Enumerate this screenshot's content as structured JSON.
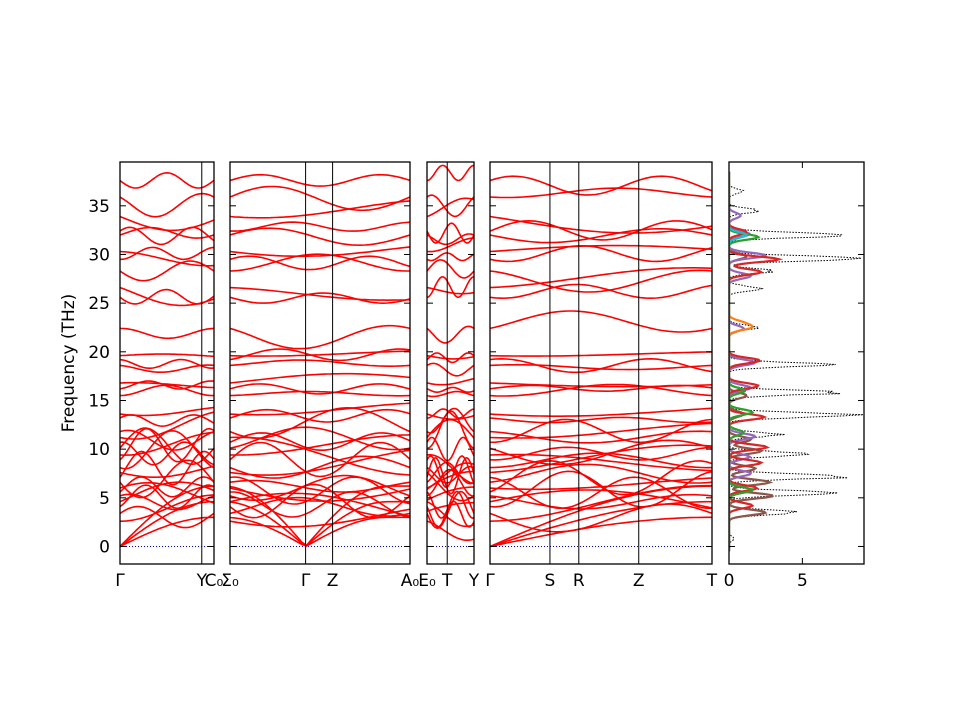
{
  "chart_data": {
    "type": "line",
    "description_source": "phonon band structure with projected density of states",
    "ylabel": "Frequency (THz)",
    "ylim": [
      -1.8,
      39.5
    ],
    "yticks": [
      0,
      5,
      10,
      15,
      20,
      25,
      30,
      35
    ],
    "grid": false,
    "panels": [
      {
        "id": "p1",
        "kind": "bands",
        "points": [
          "Γ",
          "Y",
          "C₀"
        ],
        "point_pos": [
          0,
          0.87,
          1.0
        ]
      },
      {
        "id": "p2",
        "kind": "bands",
        "points": [
          "Σ₀",
          "Γ",
          "Z",
          "A₀"
        ],
        "point_pos": [
          0,
          0.42,
          0.57,
          1.0
        ]
      },
      {
        "id": "p3",
        "kind": "bands",
        "points": [
          "E₀",
          "T",
          "Y"
        ],
        "point_pos": [
          0,
          0.43,
          1.0
        ]
      },
      {
        "id": "p4",
        "kind": "bands",
        "points": [
          "Γ",
          "S",
          "R",
          "Z",
          "T"
        ],
        "point_pos": [
          0,
          0.27,
          0.4,
          0.67,
          1.0
        ]
      },
      {
        "id": "p5",
        "kind": "dos",
        "xticks": [
          0,
          5
        ],
        "xlim": [
          0,
          9.2
        ]
      }
    ],
    "band_frequencies_at_gamma": [
      0,
      0,
      0,
      2.6,
      3.4,
      4.1,
      4.6,
      5.2,
      5.6,
      6.0,
      6.6,
      7.1,
      7.6,
      8.1,
      8.9,
      9.4,
      10.1,
      10.7,
      11.2,
      11.8,
      13.2,
      13.6,
      15.5,
      16.2,
      16.8,
      18.6,
      19.2,
      19.6,
      22.4,
      25.6,
      26.6,
      28.3,
      29.5,
      30.3,
      32.0,
      32.4,
      33.9,
      35.9,
      37.6
    ],
    "dos_series": [
      {
        "color": "#000000",
        "peaks": [
          [
            0.8,
            0.3
          ],
          [
            3.5,
            4.5
          ],
          [
            5.5,
            7.5
          ],
          [
            7.2,
            8.5
          ],
          [
            9.5,
            5.5
          ],
          [
            11.5,
            3.5
          ],
          [
            13.5,
            9.0
          ],
          [
            15.8,
            7.5
          ],
          [
            18.7,
            6.5
          ],
          [
            22.5,
            2.0
          ],
          [
            26.5,
            2.2
          ],
          [
            28.3,
            3.0
          ],
          [
            29.6,
            8.8
          ],
          [
            32.0,
            9.0
          ],
          [
            34.5,
            2.0
          ],
          [
            36.5,
            1.0
          ]
        ]
      },
      {
        "color": "#8c564b",
        "peaks": [
          [
            3.5,
            2.5
          ],
          [
            5.2,
            3.0
          ],
          [
            6.6,
            2.8
          ],
          [
            8.0,
            1.8
          ],
          [
            9.8,
            2.2
          ],
          [
            11.0,
            1.5
          ],
          [
            13.6,
            1.0
          ],
          [
            15.5,
            1.2
          ],
          [
            29.8,
            1.2
          ]
        ]
      },
      {
        "color": "#9467bd",
        "peaks": [
          [
            7.5,
            1.5
          ],
          [
            9.2,
            1.4
          ],
          [
            11.3,
            1.8
          ],
          [
            16.3,
            1.5
          ],
          [
            18.9,
            1.8
          ],
          [
            22.4,
            1.0
          ],
          [
            27.8,
            1.5
          ],
          [
            29.9,
            2.5
          ],
          [
            32.1,
            1.4
          ],
          [
            34.0,
            0.8
          ]
        ]
      },
      {
        "color": "#d62728",
        "peaks": [
          [
            4.2,
            1.6
          ],
          [
            6.0,
            1.9
          ],
          [
            8.6,
            2.2
          ],
          [
            10.2,
            2.6
          ],
          [
            13.3,
            2.4
          ],
          [
            16.5,
            2.0
          ],
          [
            19.1,
            2.1
          ],
          [
            28.2,
            2.2
          ],
          [
            29.5,
            3.4
          ],
          [
            32.3,
            1.2
          ]
        ]
      },
      {
        "color": "#2ca02c",
        "peaks": [
          [
            5.8,
            1.6
          ],
          [
            11.7,
            1.0
          ],
          [
            13.8,
            1.6
          ],
          [
            16.0,
            1.1
          ],
          [
            31.8,
            2.0
          ]
        ]
      },
      {
        "color": "#ff7f0e",
        "peaks": [
          [
            22.5,
            1.4
          ],
          [
            23.0,
            0.8
          ]
        ]
      },
      {
        "color": "#17becf",
        "peaks": [
          [
            32.0,
            1.2
          ]
        ]
      }
    ]
  }
}
